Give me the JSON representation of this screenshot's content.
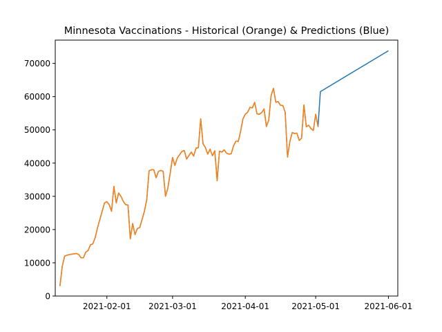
{
  "chart_data": {
    "type": "line",
    "title": "Minnesota Vaccinations - Historical (Orange) & Predictions (Blue)",
    "xlabel": "",
    "ylabel": "",
    "x_axis_type": "date",
    "xlim": [
      "2021-01-10",
      "2021-06-05"
    ],
    "ylim": [
      0,
      77000
    ],
    "x_ticks": [
      "2021-02-01",
      "2021-03-01",
      "2021-04-01",
      "2021-05-01",
      "2021-06-01"
    ],
    "y_ticks": [
      0,
      10000,
      20000,
      30000,
      40000,
      50000,
      60000,
      70000
    ],
    "grid": false,
    "legend": "none",
    "series": [
      {
        "color": "#1f77b4",
        "points": [
          [
            "2021-01-12",
            3000
          ],
          [
            "2021-01-13",
            9000
          ],
          [
            "2021-01-14",
            12000
          ],
          [
            "2021-01-15",
            12300
          ],
          [
            "2021-01-17",
            12600
          ],
          [
            "2021-01-19",
            12800
          ],
          [
            "2021-01-20",
            12500
          ],
          [
            "2021-01-21",
            11500
          ],
          [
            "2021-01-22",
            11500
          ],
          [
            "2021-01-23",
            13200
          ],
          [
            "2021-01-24",
            13700
          ],
          [
            "2021-01-25",
            15400
          ],
          [
            "2021-01-26",
            15700
          ],
          [
            "2021-01-27",
            17500
          ],
          [
            "2021-01-28",
            20500
          ],
          [
            "2021-01-29",
            23000
          ],
          [
            "2021-01-30",
            25500
          ],
          [
            "2021-01-31",
            28000
          ],
          [
            "2021-02-01",
            28400
          ],
          [
            "2021-02-02",
            27500
          ],
          [
            "2021-02-03",
            25500
          ],
          [
            "2021-02-04",
            33000
          ],
          [
            "2021-02-05",
            28000
          ],
          [
            "2021-02-06",
            31000
          ],
          [
            "2021-02-07",
            30000
          ],
          [
            "2021-02-08",
            28500
          ],
          [
            "2021-02-09",
            27500
          ],
          [
            "2021-02-10",
            27400
          ],
          [
            "2021-02-11",
            17200
          ],
          [
            "2021-02-12",
            21800
          ],
          [
            "2021-02-13",
            18500
          ],
          [
            "2021-02-14",
            20300
          ],
          [
            "2021-02-15",
            20600
          ],
          [
            "2021-02-16",
            23000
          ],
          [
            "2021-02-17",
            25500
          ],
          [
            "2021-02-18",
            29000
          ],
          [
            "2021-02-19",
            37700
          ],
          [
            "2021-02-20",
            38000
          ],
          [
            "2021-02-21",
            38000
          ],
          [
            "2021-02-22",
            35600
          ],
          [
            "2021-02-23",
            37500
          ],
          [
            "2021-02-24",
            37800
          ],
          [
            "2021-02-25",
            37500
          ],
          [
            "2021-02-26",
            30000
          ],
          [
            "2021-02-27",
            32500
          ],
          [
            "2021-02-28",
            37000
          ],
          [
            "2021-03-01",
            41700
          ],
          [
            "2021-03-02",
            39300
          ],
          [
            "2021-03-03",
            41500
          ],
          [
            "2021-03-04",
            42500
          ],
          [
            "2021-03-05",
            43500
          ],
          [
            "2021-03-06",
            43800
          ],
          [
            "2021-03-07",
            41200
          ],
          [
            "2021-03-08",
            42300
          ],
          [
            "2021-03-09",
            43300
          ],
          [
            "2021-03-10",
            42100
          ],
          [
            "2021-03-11",
            44500
          ],
          [
            "2021-03-12",
            44600
          ],
          [
            "2021-03-13",
            53300
          ],
          [
            "2021-03-14",
            45800
          ],
          [
            "2021-03-15",
            44700
          ],
          [
            "2021-03-16",
            42700
          ],
          [
            "2021-03-17",
            44200
          ],
          [
            "2021-03-18",
            42200
          ],
          [
            "2021-03-19",
            43700
          ],
          [
            "2021-03-20",
            34700
          ],
          [
            "2021-03-21",
            43600
          ],
          [
            "2021-03-22",
            43300
          ],
          [
            "2021-03-23",
            44000
          ],
          [
            "2021-03-24",
            43000
          ],
          [
            "2021-03-25",
            42700
          ],
          [
            "2021-03-26",
            42800
          ],
          [
            "2021-03-27",
            45200
          ],
          [
            "2021-03-28",
            46600
          ],
          [
            "2021-03-29",
            46500
          ],
          [
            "2021-03-30",
            49500
          ],
          [
            "2021-03-31",
            53300
          ],
          [
            "2021-04-01",
            54700
          ],
          [
            "2021-04-02",
            55300
          ],
          [
            "2021-04-03",
            56800
          ],
          [
            "2021-04-04",
            56600
          ],
          [
            "2021-04-05",
            58300
          ],
          [
            "2021-04-06",
            54800
          ],
          [
            "2021-04-07",
            54700
          ],
          [
            "2021-04-08",
            55200
          ],
          [
            "2021-04-09",
            56300
          ],
          [
            "2021-04-10",
            51000
          ],
          [
            "2021-04-11",
            53000
          ],
          [
            "2021-04-12",
            60300
          ],
          [
            "2021-04-13",
            62500
          ],
          [
            "2021-04-14",
            58300
          ],
          [
            "2021-04-15",
            58500
          ],
          [
            "2021-04-16",
            57400
          ],
          [
            "2021-04-17",
            57300
          ],
          [
            "2021-04-18",
            55300
          ],
          [
            "2021-04-19",
            41800
          ],
          [
            "2021-04-20",
            46500
          ],
          [
            "2021-04-21",
            49200
          ],
          [
            "2021-04-22",
            48900
          ],
          [
            "2021-04-23",
            49000
          ],
          [
            "2021-04-24",
            46800
          ],
          [
            "2021-04-25",
            47500
          ],
          [
            "2021-04-26",
            57500
          ],
          [
            "2021-04-27",
            50900
          ],
          [
            "2021-04-28",
            51400
          ],
          [
            "2021-04-29",
            50400
          ],
          [
            "2021-04-30",
            49800
          ],
          [
            "2021-05-01",
            54700
          ],
          [
            "2021-05-02",
            51000
          ],
          [
            "2021-05-03",
            61500
          ],
          [
            "2021-06-01",
            73800
          ]
        ]
      },
      {
        "color": "#ff7f0e",
        "points": [
          [
            "2021-01-12",
            3000
          ],
          [
            "2021-01-13",
            9000
          ],
          [
            "2021-01-14",
            12000
          ],
          [
            "2021-01-15",
            12300
          ],
          [
            "2021-01-17",
            12600
          ],
          [
            "2021-01-19",
            12800
          ],
          [
            "2021-01-20",
            12500
          ],
          [
            "2021-01-21",
            11500
          ],
          [
            "2021-01-22",
            11500
          ],
          [
            "2021-01-23",
            13200
          ],
          [
            "2021-01-24",
            13700
          ],
          [
            "2021-01-25",
            15400
          ],
          [
            "2021-01-26",
            15700
          ],
          [
            "2021-01-27",
            17500
          ],
          [
            "2021-01-28",
            20500
          ],
          [
            "2021-01-29",
            23000
          ],
          [
            "2021-01-30",
            25500
          ],
          [
            "2021-01-31",
            28000
          ],
          [
            "2021-02-01",
            28400
          ],
          [
            "2021-02-02",
            27500
          ],
          [
            "2021-02-03",
            25500
          ],
          [
            "2021-02-04",
            33000
          ],
          [
            "2021-02-05",
            28000
          ],
          [
            "2021-02-06",
            31000
          ],
          [
            "2021-02-07",
            30000
          ],
          [
            "2021-02-08",
            28500
          ],
          [
            "2021-02-09",
            27500
          ],
          [
            "2021-02-10",
            27400
          ],
          [
            "2021-02-11",
            17200
          ],
          [
            "2021-02-12",
            21800
          ],
          [
            "2021-02-13",
            18500
          ],
          [
            "2021-02-14",
            20300
          ],
          [
            "2021-02-15",
            20600
          ],
          [
            "2021-02-16",
            23000
          ],
          [
            "2021-02-17",
            25500
          ],
          [
            "2021-02-18",
            29000
          ],
          [
            "2021-02-19",
            37700
          ],
          [
            "2021-02-20",
            38000
          ],
          [
            "2021-02-21",
            38000
          ],
          [
            "2021-02-22",
            35600
          ],
          [
            "2021-02-23",
            37500
          ],
          [
            "2021-02-24",
            37800
          ],
          [
            "2021-02-25",
            37500
          ],
          [
            "2021-02-26",
            30000
          ],
          [
            "2021-02-27",
            32500
          ],
          [
            "2021-02-28",
            37000
          ],
          [
            "2021-03-01",
            41700
          ],
          [
            "2021-03-02",
            39300
          ],
          [
            "2021-03-03",
            41500
          ],
          [
            "2021-03-04",
            42500
          ],
          [
            "2021-03-05",
            43500
          ],
          [
            "2021-03-06",
            43800
          ],
          [
            "2021-03-07",
            41200
          ],
          [
            "2021-03-08",
            42300
          ],
          [
            "2021-03-09",
            43300
          ],
          [
            "2021-03-10",
            42100
          ],
          [
            "2021-03-11",
            44500
          ],
          [
            "2021-03-12",
            44600
          ],
          [
            "2021-03-13",
            53300
          ],
          [
            "2021-03-14",
            45800
          ],
          [
            "2021-03-15",
            44700
          ],
          [
            "2021-03-16",
            42700
          ],
          [
            "2021-03-17",
            44200
          ],
          [
            "2021-03-18",
            42200
          ],
          [
            "2021-03-19",
            43700
          ],
          [
            "2021-03-20",
            34700
          ],
          [
            "2021-03-21",
            43600
          ],
          [
            "2021-03-22",
            43300
          ],
          [
            "2021-03-23",
            44000
          ],
          [
            "2021-03-24",
            43000
          ],
          [
            "2021-03-25",
            42700
          ],
          [
            "2021-03-26",
            42800
          ],
          [
            "2021-03-27",
            45200
          ],
          [
            "2021-03-28",
            46600
          ],
          [
            "2021-03-29",
            46500
          ],
          [
            "2021-03-30",
            49500
          ],
          [
            "2021-03-31",
            53300
          ],
          [
            "2021-04-01",
            54700
          ],
          [
            "2021-04-02",
            55300
          ],
          [
            "2021-04-03",
            56800
          ],
          [
            "2021-04-04",
            56600
          ],
          [
            "2021-04-05",
            58300
          ],
          [
            "2021-04-06",
            54800
          ],
          [
            "2021-04-07",
            54700
          ],
          [
            "2021-04-08",
            55200
          ],
          [
            "2021-04-09",
            56300
          ],
          [
            "2021-04-10",
            51000
          ],
          [
            "2021-04-11",
            53000
          ],
          [
            "2021-04-12",
            60300
          ],
          [
            "2021-04-13",
            62500
          ],
          [
            "2021-04-14",
            58300
          ],
          [
            "2021-04-15",
            58500
          ],
          [
            "2021-04-16",
            57400
          ],
          [
            "2021-04-17",
            57300
          ],
          [
            "2021-04-18",
            55300
          ],
          [
            "2021-04-19",
            41800
          ],
          [
            "2021-04-20",
            46500
          ],
          [
            "2021-04-21",
            49200
          ],
          [
            "2021-04-22",
            48900
          ],
          [
            "2021-04-23",
            49000
          ],
          [
            "2021-04-24",
            46800
          ],
          [
            "2021-04-25",
            47500
          ],
          [
            "2021-04-26",
            57500
          ],
          [
            "2021-04-27",
            50900
          ],
          [
            "2021-04-28",
            51400
          ],
          [
            "2021-04-29",
            50400
          ],
          [
            "2021-04-30",
            49800
          ],
          [
            "2021-05-01",
            54700
          ],
          [
            "2021-05-02",
            51000
          ]
        ]
      }
    ]
  }
}
